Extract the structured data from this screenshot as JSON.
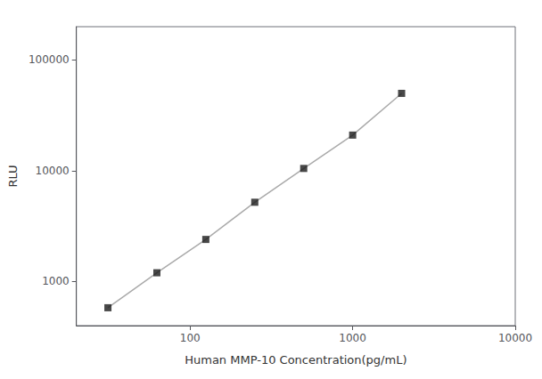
{
  "chart_data": {
    "type": "line",
    "xlabel": "Human MMP-10 Concentration(pg/mL)",
    "ylabel": "RLU",
    "x": [
      31.25,
      62.5,
      125,
      250,
      500,
      1000,
      2000
    ],
    "series": [
      {
        "type": "line",
        "color": "#aaaaaa",
        "values": [
          580,
          1200,
          2400,
          5200,
          10500,
          21000,
          50000
        ]
      },
      {
        "type": "scatter",
        "marker": "square",
        "color": "#1a1a1a",
        "values": [
          580,
          1200,
          2400,
          5200,
          10500,
          21000,
          50000
        ]
      }
    ],
    "xlim": [
      20,
      10000
    ],
    "ylim": [
      400,
      200000
    ],
    "xticks": [
      100,
      1000,
      10000
    ],
    "yticks": [
      1000,
      10000,
      100000
    ],
    "log": true,
    "grid": false
  }
}
